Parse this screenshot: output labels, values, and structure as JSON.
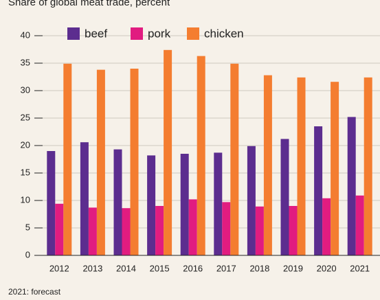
{
  "chart_data": {
    "type": "bar",
    "title": "Share of global meat trade, percent",
    "note": "2021: forecast",
    "categories": [
      "2012",
      "2013",
      "2014",
      "2015",
      "2016",
      "2017",
      "2018",
      "2019",
      "2020",
      "2021"
    ],
    "series": [
      {
        "name": "beef",
        "color": "#5c2d8f",
        "values": [
          19.0,
          20.6,
          19.3,
          18.2,
          18.5,
          18.7,
          19.9,
          21.2,
          23.5,
          25.2
        ]
      },
      {
        "name": "pork",
        "color": "#e11c80",
        "values": [
          9.4,
          8.7,
          8.6,
          9.0,
          10.2,
          9.7,
          8.9,
          9.0,
          10.4,
          10.9
        ]
      },
      {
        "name": "chicken",
        "color": "#f47d30",
        "values": [
          34.9,
          33.8,
          34.0,
          37.4,
          36.3,
          34.9,
          32.8,
          32.4,
          31.6,
          32.4
        ]
      }
    ],
    "ylim": [
      0,
      40
    ],
    "yticks": [
      0,
      5,
      10,
      15,
      20,
      25,
      30,
      35,
      40
    ],
    "grid": true
  }
}
